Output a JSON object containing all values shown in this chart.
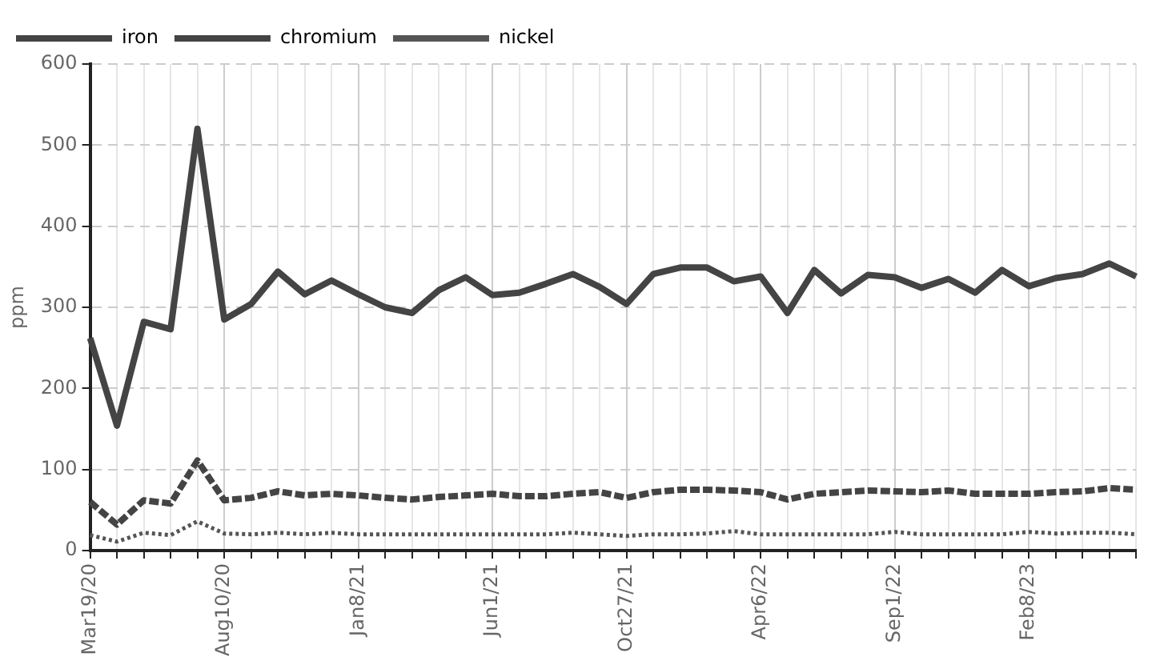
{
  "chart_data": {
    "type": "line",
    "ylabel": "ppm",
    "categories": [
      "Mar19/20",
      null,
      null,
      null,
      null,
      "Aug10/20",
      null,
      null,
      null,
      null,
      "Jan8/21",
      null,
      null,
      null,
      null,
      "Jun1/21",
      null,
      null,
      null,
      null,
      "Oct27/21",
      null,
      null,
      null,
      null,
      "Apr6/22",
      null,
      null,
      null,
      null,
      "Sep1/22",
      null,
      null,
      null,
      null,
      "Feb8/23",
      null,
      null,
      null,
      null
    ],
    "ylim": [
      0,
      600
    ],
    "yticks": [
      0,
      100,
      200,
      300,
      400,
      500,
      600
    ],
    "grid": true,
    "legend": "top left",
    "series": [
      {
        "name": "iron",
        "color": "#444444",
        "line_style": "solid",
        "values": [
          262,
          154,
          282,
          273,
          520,
          285,
          304,
          344,
          316,
          333,
          316,
          300,
          293,
          321,
          337,
          315,
          318,
          329,
          341,
          325,
          304,
          341,
          349,
          349,
          332,
          338,
          293,
          346,
          317,
          340,
          337,
          324,
          335,
          318,
          346,
          326,
          336,
          341,
          354,
          338
        ]
      },
      {
        "name": "chromium",
        "color": "#444444",
        "line_style": "dashed",
        "values": [
          60,
          32,
          62,
          58,
          111,
          62,
          65,
          73,
          68,
          70,
          68,
          65,
          63,
          66,
          68,
          70,
          67,
          67,
          70,
          72,
          65,
          72,
          75,
          75,
          74,
          72,
          63,
          70,
          72,
          74,
          73,
          72,
          74,
          70,
          70,
          70,
          72,
          73,
          77,
          75
        ]
      },
      {
        "name": "nickel",
        "color": "#555555",
        "line_style": "dotted",
        "values": [
          19,
          11,
          22,
          19,
          36,
          21,
          20,
          22,
          20,
          22,
          20,
          20,
          20,
          20,
          20,
          20,
          20,
          20,
          22,
          20,
          18,
          20,
          20,
          21,
          24,
          20,
          20,
          20,
          20,
          20,
          23,
          20,
          20,
          20,
          20,
          23,
          21,
          22,
          22,
          20
        ]
      }
    ]
  }
}
